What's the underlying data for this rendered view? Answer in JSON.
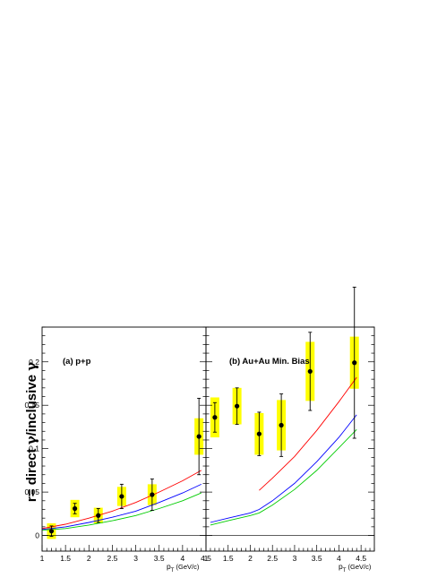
{
  "figure": {
    "ylabel_prefix": "r= direct ",
    "ylabel_gamma1": "γ",
    "ylabel_mid": "/inclusive ",
    "ylabel_gamma2": "γ"
  },
  "chart_data": [
    {
      "type": "scatter",
      "panel_label": "(a) p+p",
      "xlabel_main": "p",
      "xlabel_sub": "T",
      "xlabel_unit": " (GeV/c)",
      "xlim": [
        1.0,
        4.5
      ],
      "ylim": [
        -0.018,
        0.24
      ],
      "x_ticks": [
        "1",
        "1.5",
        "2",
        "2.5",
        "3",
        "3.5",
        "4",
        "4.5"
      ],
      "y_ticks": [
        "0",
        "0.05",
        "0.1",
        "0.15",
        "0.2"
      ],
      "colors": {
        "syst_box": "#ffff00",
        "points": "#000000",
        "red": "#ff0000",
        "blue": "#0000ff",
        "green": "#00cc00"
      },
      "points": [
        {
          "x": 1.2,
          "y": 0.005,
          "stat_err": 0.006,
          "sys_err": 0.009
        },
        {
          "x": 1.7,
          "y": 0.031,
          "stat_err": 0.006,
          "sys_err": 0.01
        },
        {
          "x": 2.2,
          "y": 0.023,
          "stat_err": 0.008,
          "sys_err": 0.009
        },
        {
          "x": 2.7,
          "y": 0.045,
          "stat_err": 0.014,
          "sys_err": 0.011
        },
        {
          "x": 3.35,
          "y": 0.047,
          "stat_err": 0.018,
          "sys_err": 0.012
        },
        {
          "x": 4.35,
          "y": 0.114,
          "stat_err": 0.044,
          "sys_err": 0.021
        }
      ],
      "series": [
        {
          "color": "red",
          "x": [
            1.0,
            1.5,
            2.0,
            2.5,
            3.0,
            3.5,
            4.0,
            4.4
          ],
          "y": [
            0.008,
            0.013,
            0.02,
            0.028,
            0.038,
            0.05,
            0.063,
            0.075
          ]
        },
        {
          "color": "blue",
          "x": [
            1.0,
            1.5,
            2.0,
            2.5,
            3.0,
            3.5,
            4.0,
            4.4
          ],
          "y": [
            0.007,
            0.01,
            0.015,
            0.021,
            0.028,
            0.038,
            0.049,
            0.059
          ]
        },
        {
          "color": "green",
          "x": [
            1.0,
            1.5,
            2.0,
            2.5,
            3.0,
            3.5,
            4.0,
            4.4
          ],
          "y": [
            0.006,
            0.008,
            0.012,
            0.017,
            0.023,
            0.031,
            0.04,
            0.049
          ]
        }
      ]
    },
    {
      "type": "scatter",
      "panel_label": "(b) Au+Au Min. Bias",
      "xlabel_main": "p",
      "xlabel_sub": "T",
      "xlabel_unit": " (GeV/c)",
      "xlim": [
        1.0,
        4.8
      ],
      "ylim": [
        -0.018,
        0.24
      ],
      "x_ticks": [
        "1",
        "1.5",
        "2",
        "2.5",
        "3",
        "3.5",
        "4",
        "4.5"
      ],
      "colors": {
        "syst_box": "#ffff00",
        "points": "#000000",
        "red": "#ff0000",
        "blue": "#0000ff",
        "green": "#00cc00"
      },
      "points": [
        {
          "x": 1.2,
          "y": 0.136,
          "stat_err": 0.017,
          "sys_err": 0.023
        },
        {
          "x": 1.7,
          "y": 0.149,
          "stat_err": 0.021,
          "sys_err": 0.021
        },
        {
          "x": 2.2,
          "y": 0.117,
          "stat_err": 0.025,
          "sys_err": 0.024
        },
        {
          "x": 2.7,
          "y": 0.127,
          "stat_err": 0.036,
          "sys_err": 0.029
        },
        {
          "x": 3.35,
          "y": 0.189,
          "stat_err": 0.045,
          "sys_err": 0.034
        },
        {
          "x": 4.35,
          "y": 0.199,
          "stat_err": 0.087,
          "sys_err": 0.03
        }
      ],
      "series": [
        {
          "color": "red",
          "x": [
            2.2,
            2.5,
            3.0,
            3.5,
            4.0,
            4.4
          ],
          "y": [
            0.052,
            0.066,
            0.091,
            0.121,
            0.154,
            0.182
          ]
        },
        {
          "color": "blue",
          "x": [
            1.1,
            1.5,
            2.0,
            2.2,
            2.5,
            3.0,
            3.5,
            4.0,
            4.4
          ],
          "y": [
            0.015,
            0.02,
            0.026,
            0.03,
            0.04,
            0.06,
            0.085,
            0.113,
            0.139
          ]
        },
        {
          "color": "green",
          "x": [
            1.1,
            1.5,
            2.0,
            2.2,
            2.5,
            3.0,
            3.5,
            4.0,
            4.4
          ],
          "y": [
            0.012,
            0.017,
            0.023,
            0.026,
            0.035,
            0.053,
            0.075,
            0.101,
            0.122
          ]
        }
      ]
    }
  ]
}
